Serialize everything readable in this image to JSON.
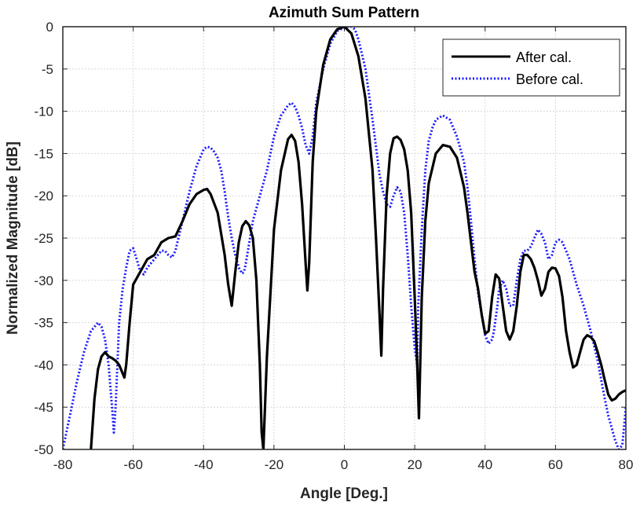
{
  "chart_data": {
    "type": "line",
    "title": "Azimuth Sum Pattern",
    "xlabel": "Angle [Deg.]",
    "ylabel": "Normalized Magnitude [dB]",
    "xlim": [
      -80,
      80
    ],
    "ylim": [
      -50,
      0
    ],
    "xticks": [
      -80,
      -60,
      -40,
      -20,
      0,
      20,
      40,
      60,
      80
    ],
    "yticks": [
      0,
      -5,
      -10,
      -15,
      -20,
      -25,
      -30,
      -35,
      -40,
      -45,
      -50
    ],
    "grid": true,
    "legend_position": "top-right",
    "series": [
      {
        "name": "After cal.",
        "color": "#000000",
        "style": "solid",
        "x": [
          -72,
          -71,
          -70,
          -69,
          -68,
          -67,
          -66,
          -65,
          -64,
          -63,
          -62.5,
          -62,
          -61,
          -60,
          -58,
          -56,
          -54,
          -52,
          -50,
          -48,
          -46,
          -44,
          -42,
          -40,
          -39,
          -38,
          -36,
          -34,
          -33,
          -32,
          -31,
          -30,
          -29,
          -28,
          -27,
          -26,
          -25,
          -24,
          -23.5,
          -23,
          -22,
          -20,
          -18,
          -16,
          -15,
          -14,
          -13,
          -12,
          -11,
          -10.5,
          -10,
          -9,
          -8,
          -6,
          -4,
          -2,
          0,
          2,
          4,
          6,
          8,
          9,
          10,
          10.5,
          11,
          12,
          13,
          14,
          15,
          16,
          17,
          18,
          19,
          20,
          20.7,
          21.2,
          22,
          23,
          24,
          26,
          28,
          30,
          32,
          34,
          35,
          36,
          37,
          38,
          39,
          40,
          41,
          42,
          43,
          44,
          45,
          46,
          47,
          48,
          49,
          50,
          51,
          52,
          53,
          54,
          55,
          56,
          57,
          58,
          59,
          60,
          61,
          62,
          63,
          64,
          65,
          66,
          67,
          68,
          69,
          70,
          71,
          72,
          73,
          74,
          75,
          76,
          77,
          78,
          79,
          80
        ],
        "y": [
          -50,
          -44,
          -40.5,
          -39,
          -38.5,
          -39,
          -39.2,
          -39.5,
          -40,
          -41,
          -41.5,
          -40,
          -35,
          -30.5,
          -29,
          -27.5,
          -27,
          -25.5,
          -25,
          -24.8,
          -23,
          -21,
          -19.8,
          -19.3,
          -19.2,
          -19.8,
          -22,
          -27,
          -30.5,
          -33,
          -29,
          -25.5,
          -23.6,
          -23,
          -23.5,
          -25,
          -30,
          -40,
          -48,
          -50,
          -39,
          -24,
          -17,
          -13.3,
          -12.8,
          -13.5,
          -16,
          -21,
          -28,
          -31.2,
          -28,
          -16,
          -10,
          -4.5,
          -1.5,
          -0.3,
          0,
          -0.8,
          -3.5,
          -8.5,
          -17,
          -25,
          -34,
          -38.9,
          -31,
          -20,
          -15,
          -13.2,
          -13,
          -13.4,
          -14.5,
          -17,
          -22,
          -32,
          -40,
          -46.3,
          -32,
          -23,
          -18.5,
          -15,
          -14,
          -14.2,
          -15.5,
          -19,
          -22,
          -25.5,
          -29,
          -31,
          -34,
          -36.3,
          -36,
          -32,
          -29.3,
          -29.8,
          -33,
          -36,
          -37,
          -36,
          -33,
          -29,
          -27,
          -27,
          -27.5,
          -28.5,
          -30,
          -31.8,
          -31,
          -29,
          -28.5,
          -28.6,
          -29.5,
          -32,
          -36,
          -38.5,
          -40.3,
          -40,
          -38.5,
          -37,
          -36.5,
          -36.7,
          -37.2,
          -38.5,
          -40,
          -41.8,
          -43.5,
          -44.2,
          -44,
          -43.5,
          -43.2,
          -43
        ]
      },
      {
        "name": "Before cal.",
        "color": "#1a1aff",
        "style": "dotted",
        "x": [
          -80,
          -78,
          -76,
          -74,
          -72,
          -70,
          -69,
          -68,
          -67,
          -66,
          -65.5,
          -65,
          -64.5,
          -64,
          -63,
          -62,
          -61,
          -60,
          -59,
          -58,
          -57,
          -56,
          -54,
          -52,
          -51,
          -50,
          -49,
          -48,
          -46,
          -44,
          -42,
          -40,
          -39,
          -38,
          -37,
          -36,
          -35,
          -34,
          -33,
          -32,
          -31,
          -30,
          -29,
          -28.5,
          -28,
          -27,
          -26,
          -24,
          -22,
          -20,
          -18,
          -16,
          -15,
          -14,
          -13,
          -12,
          -11,
          -10,
          -9,
          -8,
          -6,
          -4,
          -2,
          0,
          1,
          2,
          3,
          4,
          6,
          8,
          10,
          11,
          12,
          13,
          14,
          15,
          16,
          17,
          18,
          19,
          20,
          20.7,
          21,
          22,
          23,
          24,
          25,
          26,
          28,
          30,
          32,
          34,
          35,
          36,
          37,
          38,
          39,
          40,
          41,
          42,
          42.5,
          43,
          43.5,
          44,
          45,
          46,
          47,
          48,
          49,
          50,
          51,
          52,
          53,
          54,
          55,
          56,
          57,
          58,
          59,
          60,
          61,
          62,
          64,
          66,
          68,
          70,
          72,
          74,
          75,
          76,
          77,
          78,
          79,
          80
        ],
        "y": [
          -50,
          -46,
          -42,
          -38.5,
          -36,
          -35,
          -35.5,
          -37,
          -40,
          -45,
          -48,
          -45,
          -40,
          -35,
          -31,
          -28.5,
          -26.5,
          -26.2,
          -27.5,
          -29,
          -29.3,
          -28.5,
          -27.5,
          -26.5,
          -26.5,
          -27,
          -27.3,
          -26.5,
          -23,
          -19.5,
          -16.5,
          -14.5,
          -14.2,
          -14.3,
          -14.8,
          -15.5,
          -17,
          -19.5,
          -22.5,
          -25,
          -27,
          -28.5,
          -29.2,
          -29,
          -28,
          -25.5,
          -23,
          -20,
          -17,
          -13,
          -10.5,
          -9.3,
          -9,
          -9.5,
          -10.5,
          -12,
          -14,
          -15,
          -13,
          -9,
          -5,
          -2,
          -0.5,
          -0.1,
          0,
          0,
          -0.3,
          -1.5,
          -5,
          -11,
          -17.5,
          -19.5,
          -21,
          -21.3,
          -20,
          -19,
          -19.5,
          -22,
          -27,
          -33,
          -38,
          -40,
          -33,
          -24,
          -17,
          -13.5,
          -12,
          -11,
          -10.5,
          -11,
          -13,
          -16,
          -19,
          -23,
          -27.5,
          -31.5,
          -34,
          -36.5,
          -37.5,
          -37,
          -36,
          -34.5,
          -33,
          -31,
          -30,
          -31,
          -33,
          -33,
          -30,
          -27.5,
          -26.5,
          -26.5,
          -26,
          -25,
          -24,
          -24.5,
          -25.5,
          -27.5,
          -27,
          -25.5,
          -25.2,
          -25.5,
          -27.5,
          -30.5,
          -33,
          -36,
          -39.5,
          -44,
          -46,
          -47.5,
          -49,
          -50,
          -49.5,
          -45
        ]
      }
    ]
  }
}
